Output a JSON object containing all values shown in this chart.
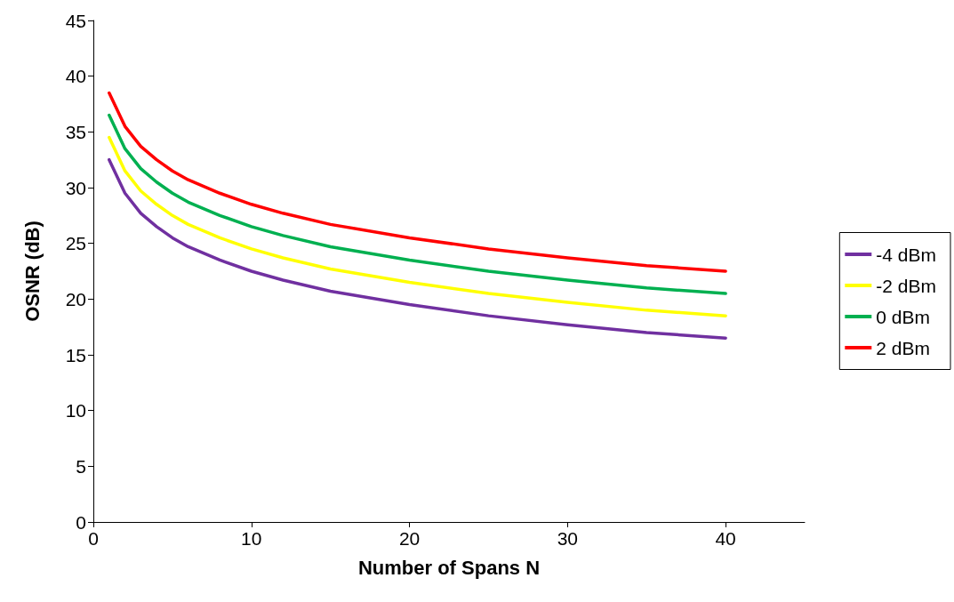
{
  "chart_data": {
    "type": "line",
    "xlabel": "Number of Spans N",
    "ylabel": "OSNR (dB)",
    "x": [
      1,
      2,
      3,
      4,
      5,
      6,
      8,
      10,
      12,
      15,
      20,
      25,
      30,
      35,
      40
    ],
    "series": [
      {
        "name": "-4 dBm",
        "color": "#7030a0",
        "values": [
          32.5,
          29.5,
          27.7,
          26.5,
          25.5,
          24.7,
          23.5,
          22.5,
          21.7,
          20.7,
          19.5,
          18.5,
          17.7,
          17.0,
          16.5
        ]
      },
      {
        "name": "-2 dBm",
        "color": "#ffff00",
        "values": [
          34.5,
          31.5,
          29.7,
          28.5,
          27.5,
          26.7,
          25.5,
          24.5,
          23.7,
          22.7,
          21.5,
          20.5,
          19.7,
          19.0,
          18.5
        ]
      },
      {
        "name": "0 dBm",
        "color": "#00b050",
        "values": [
          36.5,
          33.5,
          31.7,
          30.5,
          29.5,
          28.7,
          27.5,
          26.5,
          25.7,
          24.7,
          23.5,
          22.5,
          21.7,
          21.0,
          20.5
        ]
      },
      {
        "name": "2 dBm",
        "color": "#ff0000",
        "values": [
          38.5,
          35.5,
          33.7,
          32.5,
          31.5,
          30.7,
          29.5,
          28.5,
          27.7,
          26.7,
          25.5,
          24.5,
          23.7,
          23.0,
          22.5
        ]
      }
    ],
    "xlim": [
      0,
      45
    ],
    "xticks": [
      0,
      10,
      20,
      30,
      40
    ],
    "ylim": [
      0,
      45
    ],
    "yticks": [
      0,
      5,
      10,
      15,
      20,
      25,
      30,
      35,
      40,
      45
    ],
    "grid": false,
    "legend": "right",
    "marker": "none",
    "line_style": "solid"
  }
}
